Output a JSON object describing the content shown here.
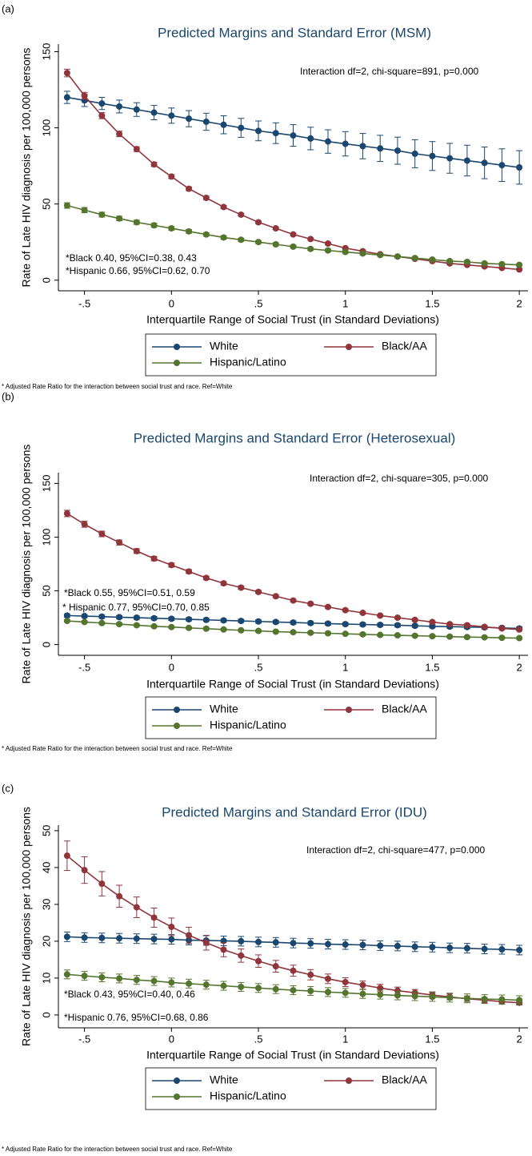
{
  "chart_data": [
    {
      "type": "line",
      "panel_label": "(a)",
      "title": "Predicted Margins and Standard Error (MSM)",
      "annotations": [
        "Interaction df=2, chi-square=891, p=0.000",
        "*Black 0.40, 95%CI=0.38, 0.43",
        "*Hispanic 0.66, 95%CI=0.62, 0.70"
      ],
      "x_label": "Interquartile Range of Social Trust (in Standard Deviations)",
      "y_label": "Rate of Late HIV diagnosis per 100,000 persons",
      "footnote": "* Adjusted Rate Ratio for the interaction between social trust and race. Ref=White",
      "x": [
        -0.6,
        -0.5,
        -0.4,
        -0.3,
        -0.2,
        -0.1,
        0,
        0.1,
        0.2,
        0.3,
        0.4,
        0.5,
        0.6,
        0.7,
        0.8,
        0.9,
        1,
        1.1,
        1.2,
        1.3,
        1.4,
        1.5,
        1.6,
        1.7,
        1.8,
        1.9,
        2
      ],
      "xlim": [
        -0.65,
        2.05
      ],
      "xticks": [
        {
          "value": -0.5,
          "label": "-.5"
        },
        0,
        {
          "value": 0.5,
          "label": ".5"
        },
        1,
        1.5,
        2
      ],
      "ylim": [
        -7,
        155
      ],
      "yticks": [
        0,
        50,
        100,
        150
      ],
      "legend": "bottom",
      "series": [
        {
          "name": "White",
          "color": "#1a476f",
          "values": [
            120,
            118,
            116,
            114,
            112,
            110,
            108,
            106,
            104,
            102,
            100,
            98,
            96.5,
            95,
            93,
            91,
            89.5,
            88,
            86.5,
            85,
            83,
            81.5,
            80,
            78.5,
            77,
            75.5,
            74
          ],
          "errors": [
            4,
            4,
            4,
            4.2,
            4.5,
            4.7,
            5,
            5.3,
            5.6,
            5.9,
            6.2,
            6.5,
            6.8,
            7.1,
            7.4,
            7.7,
            8,
            8.3,
            8.6,
            8.9,
            9.2,
            9.5,
            9.8,
            10.1,
            10.4,
            10.7,
            11
          ]
        },
        {
          "name": "Black/AA",
          "color": "#90353b",
          "values": [
            136,
            121,
            108,
            96,
            86,
            76,
            68,
            60,
            54,
            48,
            43,
            38,
            34,
            30,
            27,
            24,
            21,
            19,
            17,
            15.5,
            14,
            12.5,
            11,
            10,
            9,
            8,
            7
          ],
          "errors": [
            2.5,
            2.3,
            2,
            1.8,
            1.6,
            1.4,
            1.3,
            1.2,
            1.1,
            1,
            0.9,
            0.9,
            0.8,
            0.8,
            0.7,
            0.7,
            0.7,
            0.6,
            0.6,
            0.6,
            0.6,
            0.5,
            0.5,
            0.5,
            0.5,
            0.5,
            0.5
          ]
        },
        {
          "name": "Hispanic/Latino",
          "color": "#55752f",
          "values": [
            49,
            46,
            43,
            40.5,
            38,
            36,
            34,
            32,
            30,
            28,
            26.5,
            25,
            23.5,
            22,
            20.5,
            19.5,
            18.5,
            17.5,
            16.5,
            15.5,
            14.5,
            13.5,
            12.5,
            12,
            11,
            10.5,
            10
          ],
          "errors": [
            1.8,
            1.7,
            1.6,
            1.5,
            1.4,
            1.3,
            1.2,
            1.2,
            1.1,
            1.1,
            1,
            1,
            1,
            0.9,
            0.9,
            0.9,
            0.9,
            0.8,
            0.8,
            0.8,
            0.8,
            0.8,
            0.8,
            0.8,
            0.8,
            0.8,
            0.8
          ]
        }
      ]
    },
    {
      "type": "line",
      "panel_label": "(b)",
      "title": "Predicted Margins and Standard Error (Heterosexual)",
      "annotations": [
        "Interaction df=2, chi-square=305, p=0.000",
        "*Black 0.55, 95%CI=0.51, 0.59",
        "* Hispanic 0.77, 95%CI=0.70, 0.85"
      ],
      "x_label": "Interquartile Range of Social Trust (in Standard Deviations)",
      "y_label": "Rate of Late HIV diagnosis per 100,000 persons",
      "footnote": "* Adjusted Rate Ratio for the interaction between social trust and race. Ref=White",
      "x": [
        -0.6,
        -0.5,
        -0.4,
        -0.3,
        -0.2,
        -0.1,
        0,
        0.1,
        0.2,
        0.3,
        0.4,
        0.5,
        0.6,
        0.7,
        0.8,
        0.9,
        1,
        1.1,
        1.2,
        1.3,
        1.4,
        1.5,
        1.6,
        1.7,
        1.8,
        1.9,
        2
      ],
      "xlim": [
        -0.65,
        2.05
      ],
      "xticks": [
        {
          "value": -0.5,
          "label": "-.5"
        },
        0,
        {
          "value": 0.5,
          "label": ".5"
        },
        1,
        1.5,
        2
      ],
      "ylim": [
        -10,
        160
      ],
      "yticks": [
        0,
        50,
        100,
        150
      ],
      "legend": "bottom",
      "series": [
        {
          "name": "White",
          "color": "#1a476f",
          "values": [
            27,
            26.5,
            26,
            25.5,
            25,
            24.5,
            24,
            23.5,
            23,
            22.5,
            22,
            21.5,
            21,
            20.5,
            20,
            19.5,
            19,
            18.7,
            18.3,
            18,
            17.5,
            17,
            16.7,
            16.3,
            16,
            15.5,
            15
          ],
          "errors": [
            1.5,
            1.5,
            1.5,
            1.5,
            1.5,
            1.5,
            1.5,
            1.5,
            1.5,
            1.5,
            1.5,
            1.5,
            1.5,
            1.5,
            1.5,
            1.5,
            1.5,
            1.5,
            1.5,
            1.5,
            1.5,
            1.5,
            1.5,
            1.5,
            1.5,
            1.5,
            1.5
          ]
        },
        {
          "name": "Black/AA",
          "color": "#90353b",
          "values": [
            122,
            112,
            103,
            95,
            87,
            80,
            74,
            68,
            62,
            57,
            53,
            49,
            45,
            41,
            38,
            35,
            32,
            29.5,
            27,
            25,
            23,
            21,
            19,
            18,
            16.5,
            15,
            14
          ],
          "errors": [
            3,
            2.8,
            2.6,
            2.4,
            2.2,
            2,
            1.9,
            1.8,
            1.7,
            1.6,
            1.5,
            1.4,
            1.3,
            1.2,
            1.2,
            1.1,
            1.1,
            1,
            1,
            1,
            1,
            1,
            1,
            1,
            1,
            1,
            1
          ]
        },
        {
          "name": "Hispanic/Latino",
          "color": "#55752f",
          "values": [
            22,
            21,
            20,
            19,
            18,
            17,
            16.3,
            15.5,
            14.8,
            14,
            13.3,
            12.7,
            12,
            11.5,
            11,
            10.5,
            10,
            9.5,
            9,
            8.6,
            8.2,
            7.8,
            7.4,
            7,
            6.7,
            6.3,
            6
          ],
          "errors": [
            1,
            1,
            1,
            1,
            1,
            1,
            1,
            1,
            1,
            1,
            1,
            1,
            1,
            1,
            1,
            1,
            1,
            1,
            1,
            1,
            1,
            1,
            1,
            1,
            1,
            1,
            1
          ]
        }
      ]
    },
    {
      "type": "line",
      "panel_label": "(c)",
      "title": "Predicted Margins and Standard Error (IDU)",
      "annotations": [
        "Interaction df=2, chi-square=477, p=0.000",
        "*Black 0.43, 95%CI=0.40, 0.46",
        "*Hispanic 0.76, 95%CI=0.68, 0.86"
      ],
      "x_label": "Interquartile Range of Social Trust (in Standard Deviations)",
      "y_label": "Rate of Late HIV diagnosis per 100,000 persons",
      "footnote": "* Adjusted Rate Ratio for the interaction between social trust and race. Ref=White",
      "x": [
        -0.6,
        -0.5,
        -0.4,
        -0.3,
        -0.2,
        -0.1,
        0,
        0.1,
        0.2,
        0.3,
        0.4,
        0.5,
        0.6,
        0.7,
        0.8,
        0.9,
        1,
        1.1,
        1.2,
        1.3,
        1.4,
        1.5,
        1.6,
        1.7,
        1.8,
        1.9,
        2
      ],
      "xlim": [
        -0.65,
        2.05
      ],
      "xticks": [
        {
          "value": -0.5,
          "label": "-.5"
        },
        0,
        {
          "value": 0.5,
          "label": ".5"
        },
        1,
        1.5,
        2
      ],
      "ylim": [
        -3.5,
        51.5
      ],
      "yticks": [
        0,
        10,
        20,
        30,
        40,
        50
      ],
      "legend": "bottom",
      "series": [
        {
          "name": "White",
          "color": "#1a476f",
          "values": [
            21.2,
            21,
            20.9,
            20.8,
            20.7,
            20.6,
            20.5,
            20.3,
            20.2,
            20.1,
            20,
            19.8,
            19.7,
            19.5,
            19.4,
            19.2,
            19.1,
            19,
            18.8,
            18.7,
            18.5,
            18.4,
            18.2,
            18.1,
            17.9,
            17.8,
            17.6
          ],
          "errors": [
            1.3,
            1.3,
            1.3,
            1.3,
            1.3,
            1.3,
            1.3,
            1.3,
            1.3,
            1.3,
            1.3,
            1.3,
            1.3,
            1.3,
            1.3,
            1.3,
            1.3,
            1.3,
            1.3,
            1.3,
            1.3,
            1.3,
            1.3,
            1.3,
            1.3,
            1.3,
            1.3
          ]
        },
        {
          "name": "Black/AA",
          "color": "#90353b",
          "values": [
            43.2,
            39.3,
            35.6,
            32.2,
            29.2,
            26.4,
            23.9,
            21.6,
            19.6,
            17.7,
            16.1,
            14.6,
            13.2,
            12,
            10.9,
            9.8,
            8.9,
            8.1,
            7.3,
            6.6,
            6,
            5.4,
            4.9,
            4.4,
            4,
            3.6,
            3.3
          ],
          "errors": [
            4,
            3.6,
            3.3,
            3,
            2.8,
            2.6,
            2.4,
            2.2,
            2,
            1.9,
            1.8,
            1.7,
            1.6,
            1.5,
            1.4,
            1.3,
            1.2,
            1.1,
            1,
            0.95,
            0.9,
            0.85,
            0.8,
            0.75,
            0.7,
            0.65,
            0.6
          ]
        },
        {
          "name": "Hispanic/Latino",
          "color": "#55752f",
          "values": [
            11,
            10.6,
            10.2,
            9.9,
            9.5,
            9.2,
            8.8,
            8.5,
            8.2,
            7.9,
            7.6,
            7.3,
            7,
            6.7,
            6.5,
            6.2,
            6,
            5.7,
            5.5,
            5.3,
            5.1,
            4.9,
            4.7,
            4.5,
            4.3,
            4.2,
            4
          ],
          "errors": [
            1.2,
            1.2,
            1.2,
            1.2,
            1.2,
            1.2,
            1.2,
            1.2,
            1.2,
            1.2,
            1.2,
            1.2,
            1.2,
            1.2,
            1.2,
            1.2,
            1.2,
            1.2,
            1.2,
            1.2,
            1.2,
            1.2,
            1.2,
            1.2,
            1.2,
            1.2,
            1.2
          ]
        }
      ]
    }
  ]
}
